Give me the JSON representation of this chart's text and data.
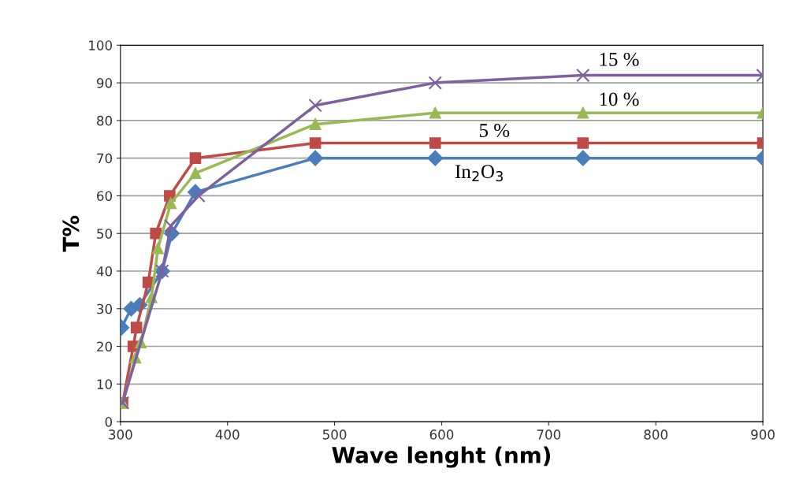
{
  "chart_data": {
    "type": "line",
    "xlabel": "Wave lenght (nm)",
    "ylabel": "T%",
    "xlim": [
      300,
      900
    ],
    "xticks": [
      300,
      400,
      500,
      600,
      700,
      800,
      900
    ],
    "ylim": [
      0,
      100
    ],
    "yticks": [
      0,
      10,
      20,
      30,
      40,
      50,
      60,
      70,
      80,
      90,
      100
    ],
    "grid": "y",
    "line_style": "solid",
    "series": [
      {
        "name": "In$_{2}$O$_{3}$",
        "color": "#4a7ebb",
        "marker": "diamond",
        "x": [
          301,
          310,
          318,
          339,
          348,
          370,
          482,
          594,
          732,
          900
        ],
        "values": [
          25,
          30,
          31,
          40,
          50,
          61,
          70,
          70,
          70,
          70
        ]
      },
      {
        "name": "5 %",
        "color": "#be4b48",
        "marker": "square",
        "x": [
          302,
          312,
          315,
          326,
          333,
          346,
          370,
          482,
          594,
          732,
          900
        ],
        "values": [
          5,
          20,
          25,
          37,
          50,
          60,
          70,
          74,
          74,
          74,
          74
        ]
      },
      {
        "name": "10 %",
        "color": "#98b954",
        "marker": "triangle",
        "x": [
          302,
          314,
          319,
          329,
          335,
          347,
          370,
          482,
          594,
          732,
          900
        ],
        "values": [
          5,
          17,
          21,
          33,
          46,
          58,
          66,
          79,
          82,
          82,
          82
        ]
      },
      {
        "name": "15 %",
        "color": "#7d60a0",
        "marker": "cross",
        "x": [
          302,
          339,
          347,
          373,
          482,
          594,
          732,
          900
        ],
        "values": [
          5,
          40,
          52,
          60,
          84,
          90,
          92,
          92
        ]
      }
    ]
  }
}
